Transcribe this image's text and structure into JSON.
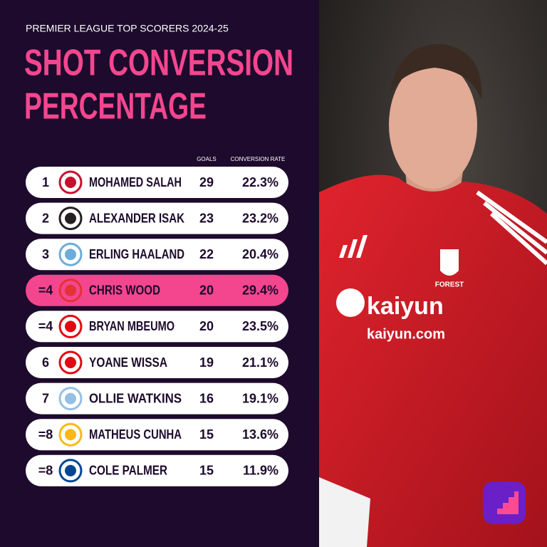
{
  "header": {
    "kicker": "PREMIER LEAGUE TOP SCORERS 2024-25",
    "title_lines": [
      "SHOT CONVERSION",
      "PERCENTAGE"
    ]
  },
  "table": {
    "columns": [
      "GOALS",
      "CONVERSION RATE"
    ],
    "rows": [
      {
        "rank": "1",
        "name": "MOHAMED SALAH",
        "goals": 29,
        "rate": "22.3%"
      },
      {
        "rank": "2",
        "name": "ALEXANDER ISAK",
        "goals": 23,
        "rate": "23.2%"
      },
      {
        "rank": "3",
        "name": "ERLING HAALAND",
        "goals": 22,
        "rate": "20.4%"
      },
      {
        "rank": "=4",
        "name": "CHRIS WOOD",
        "goals": 20,
        "rate": "29.4%",
        "highlight": true
      },
      {
        "rank": "=4",
        "name": "BRYAN MBEUMO",
        "goals": 20,
        "rate": "23.5%"
      },
      {
        "rank": "6",
        "name": "YOANE WISSA",
        "goals": 19,
        "rate": "21.1%"
      },
      {
        "rank": "7",
        "name": "OLLIE WATKINS",
        "goals": 16,
        "rate": "19.1%"
      },
      {
        "rank": "=8",
        "name": "MATHEUS CUNHA",
        "goals": 15,
        "rate": "13.6%"
      },
      {
        "rank": "=8",
        "name": "COLE PALMER",
        "goals": 15,
        "rate": "11.9%"
      }
    ]
  },
  "photo": {
    "sponsor": "kaiyun",
    "sponsor_url": "kaiyun.com",
    "crest": "FOREST"
  }
}
